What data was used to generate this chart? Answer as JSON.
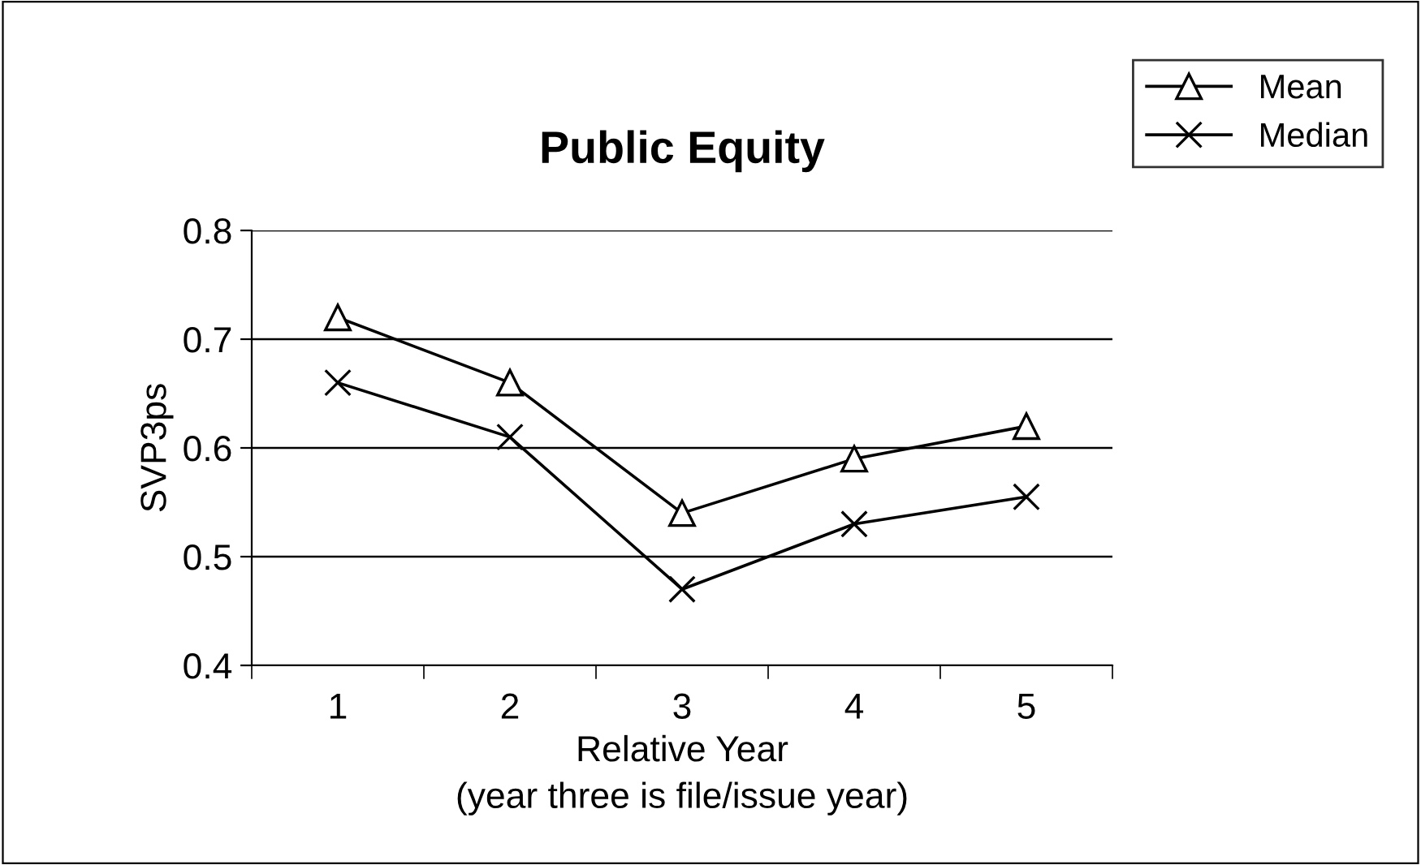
{
  "chart_data": {
    "type": "line",
    "title": "Public Equity",
    "xlabel": "Relative Year\n(year three is file/issue year)",
    "ylabel": "SVP3ps",
    "categories": [
      "1",
      "2",
      "3",
      "4",
      "5"
    ],
    "series": [
      {
        "name": "Mean",
        "color": "#000000",
        "marker": "triangle",
        "values": [
          0.72,
          0.66,
          0.54,
          0.59,
          0.62
        ]
      },
      {
        "name": "Median",
        "color": "#000000",
        "marker": "cross",
        "values": [
          0.66,
          0.61,
          0.47,
          0.53,
          0.555
        ]
      }
    ],
    "ylim": [
      0.4,
      0.8
    ],
    "yticks": [
      0.4,
      0.5,
      0.6,
      0.7,
      0.8
    ],
    "grid": "y",
    "legend": "top right",
    "line_style": "solid"
  }
}
